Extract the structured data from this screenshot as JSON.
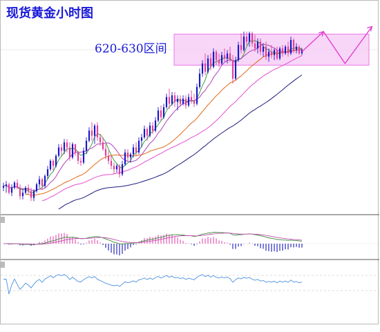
{
  "chart_data": {
    "type": "candlestick",
    "title": "现货黄金小时图",
    "annotation": "620-630区间",
    "colors": {
      "bull": "#1818c8",
      "bear": "#e0409a",
      "doji": "#909090",
      "ma_fast": "#3aa03a",
      "ma_mid": "#b040b8",
      "ma_slow": "#e06818",
      "ma_long": "#e050d0",
      "ma_longest": "#1a1a7a",
      "zone_fill": "#f5c8f5",
      "zone_border": "#e878e8",
      "projection": "#e040d0",
      "macd_pos": "#e870c0",
      "macd_neg": "#4848c8",
      "macd_line": "#3a8a3a",
      "signal_line": "#c050b0",
      "rsi_line": "#4a90e0",
      "title_text": "#1a1ad8"
    },
    "zone": {
      "from": 620,
      "to": 630
    },
    "projection": [
      {
        "bar": 0,
        "value": 625
      },
      {
        "bar": 4,
        "value": 637
      },
      {
        "bar": 8,
        "value": 618
      },
      {
        "bar": 13,
        "value": 640
      }
    ],
    "candles": [
      [
        544,
        547,
        542,
        545
      ],
      [
        545,
        548,
        541,
        546
      ],
      [
        546,
        547,
        540,
        541
      ],
      [
        541,
        546,
        539,
        544
      ],
      [
        544,
        548,
        543,
        547
      ],
      [
        547,
        549,
        543,
        544
      ],
      [
        544,
        546,
        537,
        539
      ],
      [
        539,
        543,
        537,
        541
      ],
      [
        541,
        545,
        540,
        544
      ],
      [
        544,
        546,
        540,
        542
      ],
      [
        542,
        544,
        536,
        538
      ],
      [
        538,
        543,
        536,
        542
      ],
      [
        542,
        547,
        541,
        546
      ],
      [
        546,
        551,
        544,
        549
      ],
      [
        549,
        550,
        543,
        545
      ],
      [
        545,
        552,
        544,
        551
      ],
      [
        551,
        557,
        549,
        555
      ],
      [
        555,
        561,
        554,
        560
      ],
      [
        560,
        561,
        554,
        557
      ],
      [
        557,
        564,
        556,
        563
      ],
      [
        563,
        570,
        562,
        568
      ],
      [
        568,
        570,
        563,
        566
      ],
      [
        566,
        573,
        564,
        571
      ],
      [
        571,
        573,
        565,
        568
      ],
      [
        568,
        571,
        560,
        562
      ],
      [
        562,
        571,
        561,
        570
      ],
      [
        570,
        570,
        563,
        565
      ],
      [
        565,
        566,
        558,
        560
      ],
      [
        560,
        562,
        557,
        559
      ],
      [
        559,
        568,
        558,
        566
      ],
      [
        566,
        574,
        564,
        572
      ],
      [
        572,
        580,
        571,
        578
      ],
      [
        578,
        583,
        572,
        575
      ],
      [
        575,
        582,
        570,
        581
      ],
      [
        581,
        583,
        572,
        574
      ],
      [
        574,
        576,
        569,
        571
      ],
      [
        571,
        574,
        566,
        567
      ],
      [
        567,
        570,
        561,
        563
      ],
      [
        563,
        566,
        558,
        560
      ],
      [
        560,
        563,
        555,
        557
      ],
      [
        557,
        559,
        552,
        555
      ],
      [
        555,
        558,
        553,
        557
      ],
      [
        557,
        558,
        550,
        552
      ],
      [
        552,
        560,
        551,
        558
      ],
      [
        558,
        567,
        557,
        565
      ],
      [
        565,
        567,
        560,
        562
      ],
      [
        562,
        565,
        559,
        564
      ],
      [
        564,
        570,
        562,
        568
      ],
      [
        568,
        571,
        563,
        565
      ],
      [
        565,
        574,
        564,
        572
      ],
      [
        572,
        576,
        568,
        574
      ],
      [
        574,
        581,
        573,
        579
      ],
      [
        579,
        580,
        572,
        575
      ],
      [
        575,
        583,
        574,
        581
      ],
      [
        581,
        583,
        576,
        578
      ],
      [
        578,
        586,
        577,
        584
      ],
      [
        584,
        592,
        583,
        590
      ],
      [
        590,
        593,
        584,
        586
      ],
      [
        586,
        594,
        585,
        592
      ],
      [
        592,
        600,
        591,
        598
      ],
      [
        598,
        603,
        591,
        594
      ],
      [
        594,
        601,
        593,
        599
      ],
      [
        599,
        601,
        592,
        595
      ],
      [
        595,
        599,
        590,
        597
      ],
      [
        597,
        599,
        592,
        594
      ],
      [
        594,
        599,
        593,
        597
      ],
      [
        597,
        599,
        591,
        593
      ],
      [
        593,
        600,
        592,
        598
      ],
      [
        598,
        602,
        594,
        596
      ],
      [
        596,
        600,
        592,
        594
      ],
      [
        594,
        606,
        593,
        604
      ],
      [
        604,
        615,
        603,
        612
      ],
      [
        612,
        620,
        610,
        618
      ],
      [
        618,
        624,
        611,
        613
      ],
      [
        613,
        623,
        612,
        621
      ],
      [
        621,
        624,
        614,
        616
      ],
      [
        616,
        627,
        615,
        625
      ],
      [
        625,
        626,
        617,
        620
      ],
      [
        620,
        624,
        616,
        618
      ],
      [
        618,
        625,
        617,
        623
      ],
      [
        623,
        627,
        619,
        621
      ],
      [
        621,
        626,
        618,
        624
      ],
      [
        624,
        628,
        619,
        620
      ],
      [
        620,
        623,
        606,
        609
      ],
      [
        609,
        622,
        608,
        620
      ],
      [
        620,
        631,
        619,
        629
      ],
      [
        629,
        636,
        624,
        626
      ],
      [
        626,
        637,
        625,
        634
      ],
      [
        634,
        637,
        629,
        631
      ],
      [
        631,
        637,
        628,
        636
      ],
      [
        636,
        637,
        628,
        630
      ],
      [
        630,
        635,
        625,
        627
      ],
      [
        627,
        633,
        624,
        631
      ],
      [
        631,
        633,
        623,
        625
      ],
      [
        625,
        630,
        622,
        628
      ],
      [
        628,
        631,
        620,
        622
      ],
      [
        622,
        627,
        619,
        625
      ],
      [
        625,
        629,
        621,
        623
      ],
      [
        623,
        627,
        620,
        626
      ],
      [
        626,
        628,
        620,
        621
      ],
      [
        621,
        628,
        620,
        627
      ],
      [
        627,
        629,
        622,
        624
      ],
      [
        624,
        629,
        623,
        628
      ],
      [
        628,
        631,
        622,
        624
      ],
      [
        624,
        634,
        623,
        632
      ],
      [
        632,
        633,
        624,
        626
      ],
      [
        626,
        630,
        624,
        628
      ],
      [
        628,
        629,
        623,
        624
      ],
      [
        624,
        627,
        623,
        626
      ]
    ]
  }
}
